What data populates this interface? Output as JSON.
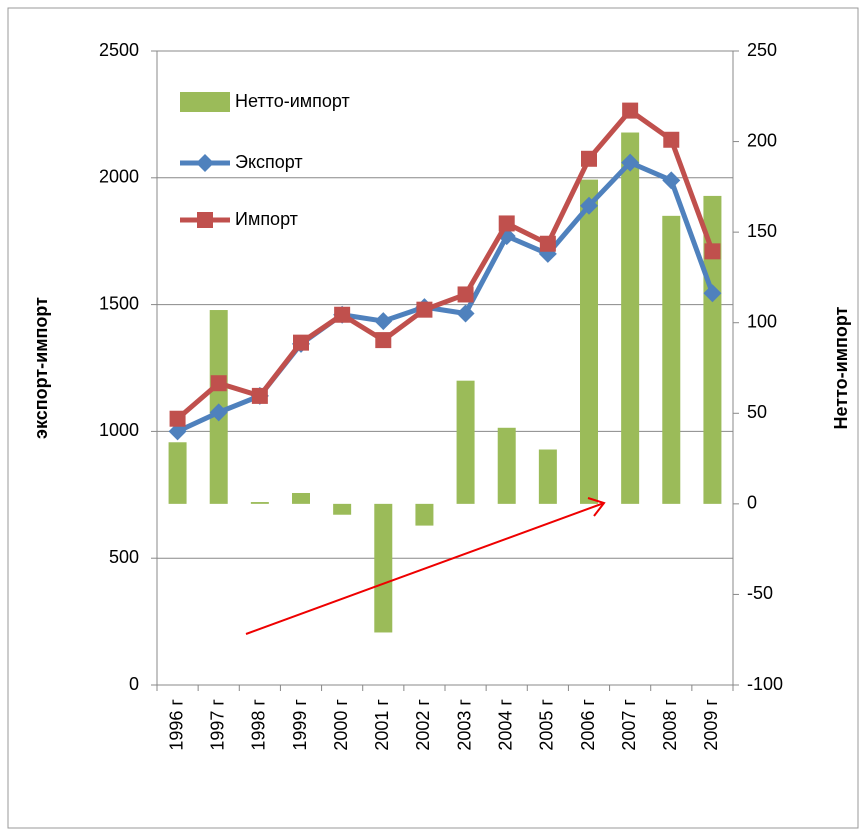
{
  "chart_data": {
    "type": "bar-line",
    "categories": [
      "1996 г",
      "1997 г",
      "1998 г",
      "1999 г",
      "2000 г",
      "2001 г",
      "2002 г",
      "2003 г",
      "2004 г",
      "2005 г",
      "2006 г",
      "2007 г",
      "2008 г",
      "2009 г"
    ],
    "series": [
      {
        "name": "Нетто-импорт",
        "type": "bar",
        "axis": "y2",
        "color": "#9bbb59",
        "values": [
          34,
          107,
          1,
          6,
          -6,
          -71,
          -12,
          68,
          42,
          30,
          179,
          205,
          159,
          170
        ]
      },
      {
        "name": "Экспорт",
        "type": "line",
        "marker": "diamond",
        "color": "#4f81bd",
        "values": [
          1000,
          1075,
          1140,
          1345,
          1460,
          1435,
          1490,
          1465,
          1770,
          1700,
          1890,
          2060,
          1990,
          1545
        ]
      },
      {
        "name": "Импорт",
        "type": "line",
        "marker": "square",
        "color": "#c0504d",
        "values": [
          1050,
          1190,
          1140,
          1350,
          1460,
          1360,
          1480,
          1540,
          1820,
          1740,
          2075,
          2265,
          2150,
          1710
        ]
      }
    ],
    "ylabel": "экспорт-импорт",
    "y2label": "Нетто-импорт",
    "ylim": [
      0,
      2500
    ],
    "yticks": [
      0,
      500,
      1000,
      1500,
      2000,
      2500
    ],
    "y2lim": [
      -100,
      250
    ],
    "y2ticks": [
      -100,
      -50,
      0,
      50,
      100,
      150,
      200,
      250
    ],
    "grid": true
  }
}
